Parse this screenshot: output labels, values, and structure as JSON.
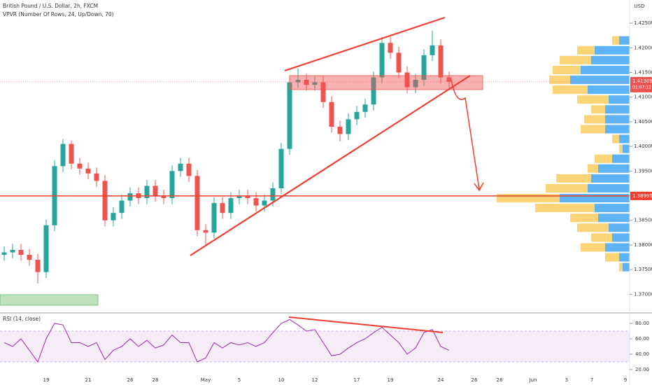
{
  "chart_data": [
    {
      "type": "candlestick",
      "title": "British Pound / U.S. Dollar, 2h, FXCM",
      "axis_label": "USD",
      "categories": [
        null,
        null,
        null,
        null,
        null,
        "19",
        null,
        null,
        null,
        null,
        "21",
        null,
        null,
        null,
        null,
        "26",
        null,
        null,
        "28",
        null,
        null,
        null,
        null,
        null,
        "May",
        null,
        null,
        null,
        "5",
        null,
        null,
        null,
        null,
        "10",
        null,
        null,
        null,
        "12",
        null,
        null,
        null,
        null,
        "17",
        null,
        null,
        null,
        "19",
        null,
        null,
        null,
        null,
        null,
        "24",
        null,
        null,
        null,
        "26",
        null,
        null,
        "28",
        null,
        null,
        null,
        "Jun",
        null,
        null,
        null,
        "3",
        null,
        null,
        "7",
        null,
        null,
        null,
        "9"
      ],
      "open": [
        1.378,
        1.3785,
        1.379,
        1.378,
        1.377,
        1.3745,
        1.384,
        1.396,
        1.4005,
        1.3965,
        1.3955,
        1.3945,
        1.393,
        1.385,
        1.3865,
        1.389,
        1.3905,
        1.3895,
        1.392,
        1.39,
        1.3895,
        1.395,
        1.3965,
        1.394,
        1.383,
        1.3825,
        1.3885,
        1.3865,
        1.3895,
        1.39,
        1.3895,
        1.388,
        1.389,
        1.3915,
        1.3995,
        1.413,
        1.4135,
        1.4125,
        1.413,
        1.409,
        1.404,
        1.4025,
        1.4055,
        1.407,
        1.4085,
        1.414,
        1.421,
        1.419,
        1.415,
        1.412,
        1.4135,
        1.4185,
        1.4205,
        1.414,
        null,
        null,
        null,
        null,
        null,
        null,
        null,
        null,
        null,
        null,
        null,
        null,
        null,
        null,
        null,
        null,
        null,
        null,
        null,
        null,
        null
      ],
      "high": [
        1.3797,
        1.3802,
        1.3802,
        1.3792,
        1.3782,
        1.3852,
        1.3972,
        1.4015,
        1.4012,
        1.3977,
        1.3967,
        1.3957,
        1.3942,
        1.3877,
        1.3902,
        1.3917,
        1.3917,
        1.3932,
        1.3932,
        1.3912,
        1.3962,
        1.3977,
        1.3977,
        1.3952,
        1.3842,
        1.3897,
        1.3897,
        1.3907,
        1.3912,
        1.3912,
        1.3907,
        1.3902,
        1.3927,
        1.4007,
        1.4142,
        1.4158,
        1.4147,
        1.4142,
        1.4142,
        1.4102,
        1.4052,
        1.4067,
        1.4082,
        1.4097,
        1.4152,
        1.4222,
        1.4222,
        1.4202,
        1.4162,
        1.4147,
        1.4197,
        1.4235,
        1.4217,
        1.4152,
        null,
        null,
        null,
        null,
        null,
        null,
        null,
        null,
        null,
        null,
        null,
        null,
        null,
        null,
        null,
        null,
        null,
        null,
        null,
        null,
        null
      ],
      "low": [
        1.3768,
        1.3773,
        1.3768,
        1.3758,
        1.3722,
        1.3733,
        1.3828,
        1.3948,
        1.3953,
        1.3943,
        1.3933,
        1.3918,
        1.3838,
        1.3838,
        1.3853,
        1.3878,
        1.3883,
        1.3883,
        1.3888,
        1.3883,
        1.3883,
        1.3938,
        1.3928,
        1.3818,
        1.38,
        1.3813,
        1.3853,
        1.3853,
        1.3883,
        1.3883,
        1.3868,
        1.3868,
        1.3878,
        1.3903,
        1.3983,
        1.4118,
        1.4113,
        1.4113,
        1.4078,
        1.4028,
        1.401,
        1.4013,
        1.4043,
        1.4058,
        1.4073,
        1.4128,
        1.4178,
        1.4138,
        1.4108,
        1.4108,
        1.4123,
        1.4173,
        1.4128,
        1.4119,
        null,
        null,
        null,
        null,
        null,
        null,
        null,
        null,
        null,
        null,
        null,
        null,
        null,
        null,
        null,
        null,
        null,
        null,
        null,
        null,
        null
      ],
      "close": [
        1.3785,
        1.379,
        1.378,
        1.377,
        1.3745,
        1.384,
        1.396,
        1.4005,
        1.3965,
        1.3955,
        1.3945,
        1.393,
        1.385,
        1.3865,
        1.389,
        1.3905,
        1.3895,
        1.392,
        1.39,
        1.3895,
        1.395,
        1.3965,
        1.394,
        1.383,
        1.3825,
        1.3885,
        1.3865,
        1.3895,
        1.39,
        1.3895,
        1.388,
        1.389,
        1.3915,
        1.3995,
        1.413,
        1.4135,
        1.4125,
        1.413,
        1.409,
        1.404,
        1.4025,
        1.4055,
        1.407,
        1.4085,
        1.414,
        1.421,
        1.419,
        1.415,
        1.412,
        1.4135,
        1.4185,
        1.4205,
        1.414,
        1.4131,
        null,
        null,
        null,
        null,
        null,
        null,
        null,
        null,
        null,
        null,
        null,
        null,
        null,
        null,
        null,
        null,
        null,
        null,
        null,
        null,
        null
      ],
      "up_color": "#26a69a",
      "down_color": "#ef5350",
      "ylim": [
        1.3665,
        1.4297
      ],
      "yticks": [
        {
          "value": 1.425,
          "label": "1.42500"
        },
        {
          "value": 1.42,
          "label": "1.42000"
        },
        {
          "value": 1.415,
          "label": "1.41500"
        },
        {
          "value": 1.41,
          "label": "1.41000"
        },
        {
          "value": 1.405,
          "label": "1.40500"
        },
        {
          "value": 1.4,
          "label": "1.40000"
        },
        {
          "value": 1.395,
          "label": "1.39500"
        },
        {
          "value": 1.39,
          "label": "1.39000"
        },
        {
          "value": 1.385,
          "label": "1.38500"
        },
        {
          "value": 1.38,
          "label": "1.38000"
        },
        {
          "value": 1.375,
          "label": "1.37500"
        },
        {
          "value": 1.37,
          "label": "1.37000"
        }
      ],
      "grid": false,
      "current_price": {
        "value": 1.41309,
        "label": "1.41309"
      },
      "countdown": "01:07:12",
      "level": {
        "value": 1.38995,
        "label": "1.38995"
      }
    },
    {
      "type": "volume_profile",
      "title": "VPVR (Number Of Rows, 24, Up/Down, 70)",
      "y": [
        1.4215,
        1.4195,
        1.4175,
        1.4155,
        1.4135,
        1.4115,
        1.4095,
        1.4075,
        1.4055,
        1.4035,
        1.4015,
        1.3995,
        1.3975,
        1.3955,
        1.3935,
        1.3915,
        1.3895,
        1.3875,
        1.3855,
        1.3835,
        1.3815,
        1.3795,
        1.3775,
        1.3755
      ],
      "ylim": [
        1.3665,
        1.4297
      ],
      "series": [
        {
          "color": "#42a5f5",
          "values": [
            15,
            50,
            55,
            70,
            85,
            60,
            30,
            35,
            35,
            35,
            15,
            10,
            25,
            45,
            55,
            60,
            100,
            50,
            45,
            30,
            25,
            35,
            15,
            10
          ]
        },
        {
          "color": "#f9cc5e",
          "values": [
            10,
            25,
            45,
            40,
            30,
            50,
            45,
            20,
            30,
            35,
            10,
            5,
            25,
            15,
            50,
            60,
            90,
            85,
            40,
            45,
            30,
            35,
            20,
            5
          ]
        }
      ]
    },
    {
      "type": "line",
      "title": "RSI (14, close)",
      "color": "#9c27b0",
      "values": [
        55,
        50,
        60,
        45,
        30,
        60,
        80,
        78,
        55,
        55,
        50,
        55,
        33,
        45,
        50,
        60,
        50,
        58,
        48,
        52,
        65,
        55,
        55,
        30,
        35,
        55,
        48,
        55,
        52,
        55,
        50,
        55,
        68,
        80,
        85,
        78,
        70,
        72,
        55,
        38,
        40,
        48,
        55,
        60,
        68,
        75,
        65,
        55,
        40,
        48,
        68,
        72,
        50,
        45,
        null,
        null,
        null,
        null,
        null,
        null,
        null,
        null,
        null,
        null,
        null,
        null,
        null,
        null,
        null,
        null,
        null,
        null,
        null,
        null,
        null
      ],
      "ylim": [
        13.6,
        90.9
      ],
      "band": [
        30,
        70
      ],
      "yticks": [
        {
          "value": 80,
          "label": "80.00"
        },
        {
          "value": 60,
          "label": "60.00"
        },
        {
          "value": 40,
          "label": "40.00"
        },
        {
          "value": 20,
          "label": "20.00"
        }
      ]
    }
  ]
}
